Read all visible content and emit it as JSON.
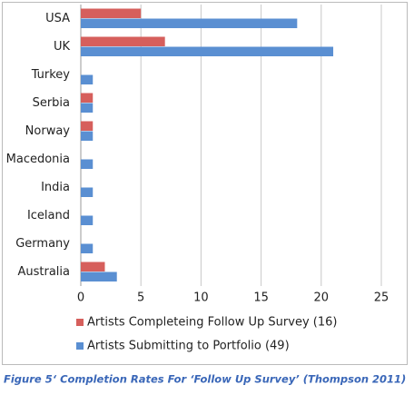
{
  "chart_data": {
    "type": "bar",
    "orientation": "horizontal",
    "categories": [
      "USA",
      "UK",
      "Turkey",
      "Serbia",
      "Norway",
      "Macedonia",
      "India",
      "Iceland",
      "Germany",
      "Australia"
    ],
    "series": [
      {
        "name": "Artists Completeing Follow Up Survey (16)",
        "color": "#d65f5c",
        "values": [
          5,
          7,
          0,
          1,
          1,
          0,
          0,
          0,
          0,
          2
        ]
      },
      {
        "name": "Artists Submitting to Portfolio (49)",
        "color": "#5a8fd2",
        "values": [
          18,
          21,
          1,
          1,
          1,
          1,
          1,
          1,
          1,
          3
        ]
      }
    ],
    "xlim": [
      0,
      25
    ],
    "xticks": [
      0,
      5,
      10,
      15,
      20,
      25
    ],
    "grid": true,
    "caption": "Figure 5‘ Completion Rates For ‘Follow Up Survey’ (Thompson 2011)"
  }
}
